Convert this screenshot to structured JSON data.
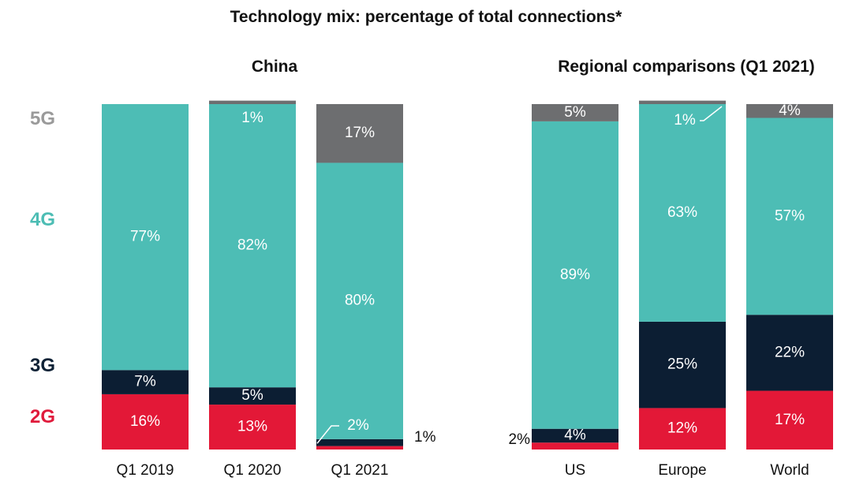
{
  "title": "Technology mix: percentage of total connections*",
  "legend": [
    {
      "label": "5G",
      "color": "#9a9a9a"
    },
    {
      "label": "4G",
      "color": "#4dbdb4"
    },
    {
      "label": "3G",
      "color": "#0f2236"
    },
    {
      "label": "2G",
      "color": "#e01b3c"
    }
  ],
  "colors": {
    "2G": "#e31837",
    "3G": "#0c1e33",
    "4G": "#4dbdb5",
    "5G": "#6d6e70"
  },
  "chart_data": [
    {
      "type": "bar",
      "stacked": true,
      "title": "China",
      "categories": [
        "Q1 2019",
        "Q1 2020",
        "Q1 2021"
      ],
      "series": [
        {
          "name": "2G",
          "values": [
            16,
            13,
            1
          ]
        },
        {
          "name": "3G",
          "values": [
            7,
            5,
            2
          ]
        },
        {
          "name": "4G",
          "values": [
            77,
            82,
            80
          ]
        },
        {
          "name": "5G",
          "values": [
            0,
            1,
            17
          ]
        }
      ],
      "labels": [
        [
          "16%",
          "7%",
          "77%",
          ""
        ],
        [
          "13%",
          "5%",
          "82%",
          "1%"
        ],
        [
          "1%",
          "2%",
          "80%",
          "17%"
        ]
      ],
      "ylim": [
        0,
        100
      ]
    },
    {
      "type": "bar",
      "stacked": true,
      "title": "Regional comparisons (Q1 2021)",
      "categories": [
        "US",
        "Europe",
        "World"
      ],
      "series": [
        {
          "name": "2G",
          "values": [
            2,
            12,
            17
          ]
        },
        {
          "name": "3G",
          "values": [
            4,
            25,
            22
          ]
        },
        {
          "name": "4G",
          "values": [
            89,
            63,
            57
          ]
        },
        {
          "name": "5G",
          "values": [
            5,
            1,
            4
          ]
        }
      ],
      "labels": [
        [
          "2%",
          "4%",
          "89%",
          "5%"
        ],
        [
          "12%",
          "25%",
          "63%",
          "1%"
        ],
        [
          "17%",
          "22%",
          "57%",
          "4%"
        ]
      ],
      "ylim": [
        0,
        100
      ]
    }
  ]
}
